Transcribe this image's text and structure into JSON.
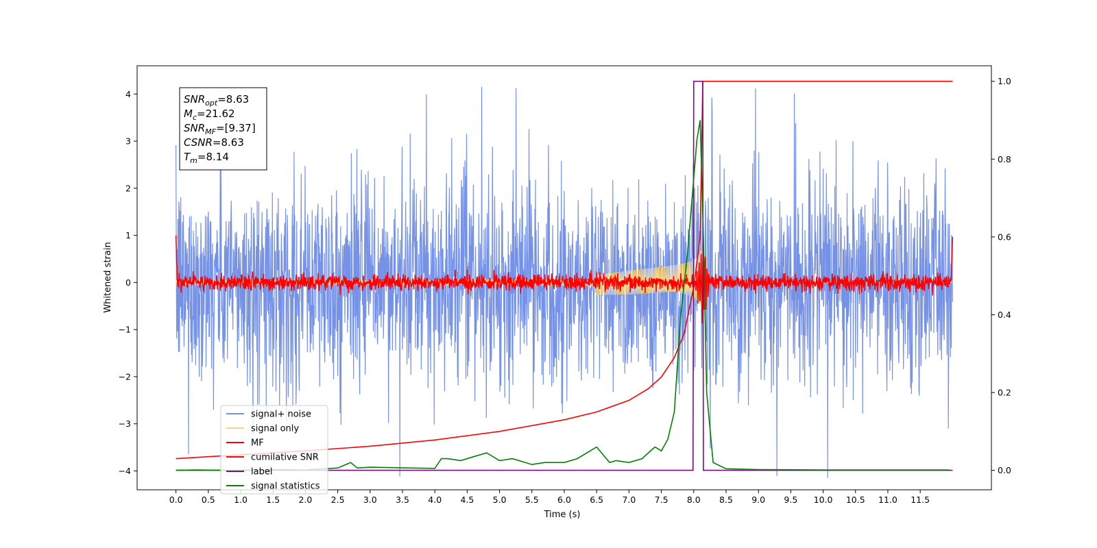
{
  "chart_data": {
    "type": "line",
    "xlabel": "Time (s)",
    "ylabel": "Whitened strain",
    "xlim": [
      -0.6,
      12.6
    ],
    "ylim_left": [
      -4.4,
      4.6
    ],
    "ylim_right": [
      -0.05,
      1.04
    ],
    "x_ticks": [
      0.0,
      0.5,
      1.0,
      1.5,
      2.0,
      2.5,
      3.0,
      3.5,
      4.0,
      4.5,
      5.0,
      5.5,
      6.0,
      6.5,
      7.0,
      7.5,
      8.0,
      8.5,
      9.0,
      9.5,
      10.0,
      10.5,
      11.0,
      11.5
    ],
    "x_tick_labels": [
      "0.0",
      "0.5",
      "1.0",
      "1.5",
      "2.0",
      "2.5",
      "3.0",
      "3.5",
      "4.0",
      "4.5",
      "5.0",
      "5.5",
      "6.0",
      "6.5",
      "7.0",
      "7.5",
      "8.0",
      "8.5",
      "9.0",
      "9.5",
      "10.0",
      "10.5",
      "11.0",
      "11.5"
    ],
    "y_ticks_left": [
      -4,
      -3,
      -2,
      -1,
      0,
      1,
      2,
      3,
      4
    ],
    "y_tick_labels_left": [
      "−4",
      "−3",
      "−2",
      "−1",
      "0",
      "1",
      "2",
      "3",
      "4"
    ],
    "y_ticks_right": [
      0.0,
      0.2,
      0.4,
      0.6,
      0.8,
      1.0
    ],
    "y_tick_labels_right": [
      "0.0",
      "0.2",
      "0.4",
      "0.6",
      "0.8",
      "1.0"
    ],
    "grid": false,
    "legend_position": "lower-left",
    "legend": [
      "signal+ noise",
      "signal only",
      "MF",
      "cumilative SNR",
      "label",
      "signal statistics"
    ],
    "stats_box": {
      "position": "upper-left",
      "lines": [
        {
          "base": "SNR",
          "sub": "opt",
          "value": "=8.63"
        },
        {
          "base": "M",
          "sub": "c",
          "value": "=21.62"
        },
        {
          "base": "SNR",
          "sub": "MF",
          "value": "=[9.37]"
        },
        {
          "base": "CSNR",
          "sub": "",
          "value": "=8.63"
        },
        {
          "base": "T",
          "sub": "m",
          "value": "=8.14"
        }
      ]
    },
    "series": [
      {
        "name": "signal+ noise",
        "axis": "left",
        "color": "#7592e6",
        "pattern": "noise",
        "x_range": [
          0.0,
          12.0
        ],
        "amplitude_typical": 1.6,
        "amplitude_peak": 4.15,
        "description_values": {
          "mean": 0.0
        }
      },
      {
        "name": "signal only",
        "axis": "left",
        "color": "#f5d68b",
        "pattern": "chirp",
        "x_range": [
          0.0,
          12.0
        ],
        "merger_time": 8.14,
        "peak_amplitude": 0.8
      },
      {
        "name": "MF",
        "axis": "left",
        "color": "#ff0000",
        "pattern": "noise",
        "x_range": [
          0.0,
          12.0
        ],
        "amplitude_typical": 0.12,
        "start_value": 1.0,
        "end_value": 0.97
      },
      {
        "name": "cumilative SNR",
        "axis": "right",
        "color": "#ff0000",
        "x": [
          0.0,
          0.5,
          1.0,
          2.0,
          3.0,
          4.0,
          5.0,
          6.0,
          6.5,
          7.0,
          7.3,
          7.5,
          7.7,
          7.85,
          8.0,
          8.1,
          8.14,
          8.2,
          12.0
        ],
        "y": [
          0.03,
          0.035,
          0.04,
          0.05,
          0.062,
          0.078,
          0.1,
          0.13,
          0.15,
          0.18,
          0.21,
          0.24,
          0.29,
          0.35,
          0.47,
          0.6,
          1.0,
          1.0,
          1.0
        ]
      },
      {
        "name": "label",
        "axis": "right",
        "color": "#7b0a84",
        "x": [
          0.0,
          7.99,
          8.0,
          8.05,
          8.14,
          8.15,
          12.0
        ],
        "y": [
          0.0,
          0.0,
          1.0,
          1.0,
          1.0,
          0.0,
          0.0
        ]
      },
      {
        "name": "signal statistics",
        "axis": "right",
        "color": "#008000",
        "x": [
          0.0,
          0.3,
          0.8,
          1.5,
          2.0,
          2.3,
          2.5,
          2.7,
          2.8,
          3.0,
          3.3,
          3.6,
          4.0,
          4.1,
          4.2,
          4.4,
          4.6,
          4.8,
          5.0,
          5.2,
          5.5,
          5.7,
          6.0,
          6.2,
          6.4,
          6.5,
          6.6,
          6.7,
          6.8,
          7.0,
          7.2,
          7.4,
          7.5,
          7.6,
          7.7,
          7.8,
          7.9,
          8.0,
          8.05,
          8.1,
          8.15,
          8.2,
          8.3,
          8.5,
          9.0,
          10.0,
          11.0,
          11.95
        ],
        "y": [
          0.0,
          0.001,
          0.0,
          0.002,
          0.001,
          0.004,
          0.006,
          0.02,
          0.006,
          0.008,
          0.007,
          0.006,
          0.005,
          0.03,
          0.03,
          0.025,
          0.035,
          0.045,
          0.025,
          0.03,
          0.015,
          0.02,
          0.02,
          0.03,
          0.05,
          0.06,
          0.04,
          0.02,
          0.025,
          0.02,
          0.03,
          0.06,
          0.05,
          0.08,
          0.15,
          0.4,
          0.55,
          0.75,
          0.85,
          0.9,
          0.6,
          0.2,
          0.02,
          0.004,
          0.002,
          0.001,
          0.001,
          0.001
        ]
      }
    ]
  }
}
